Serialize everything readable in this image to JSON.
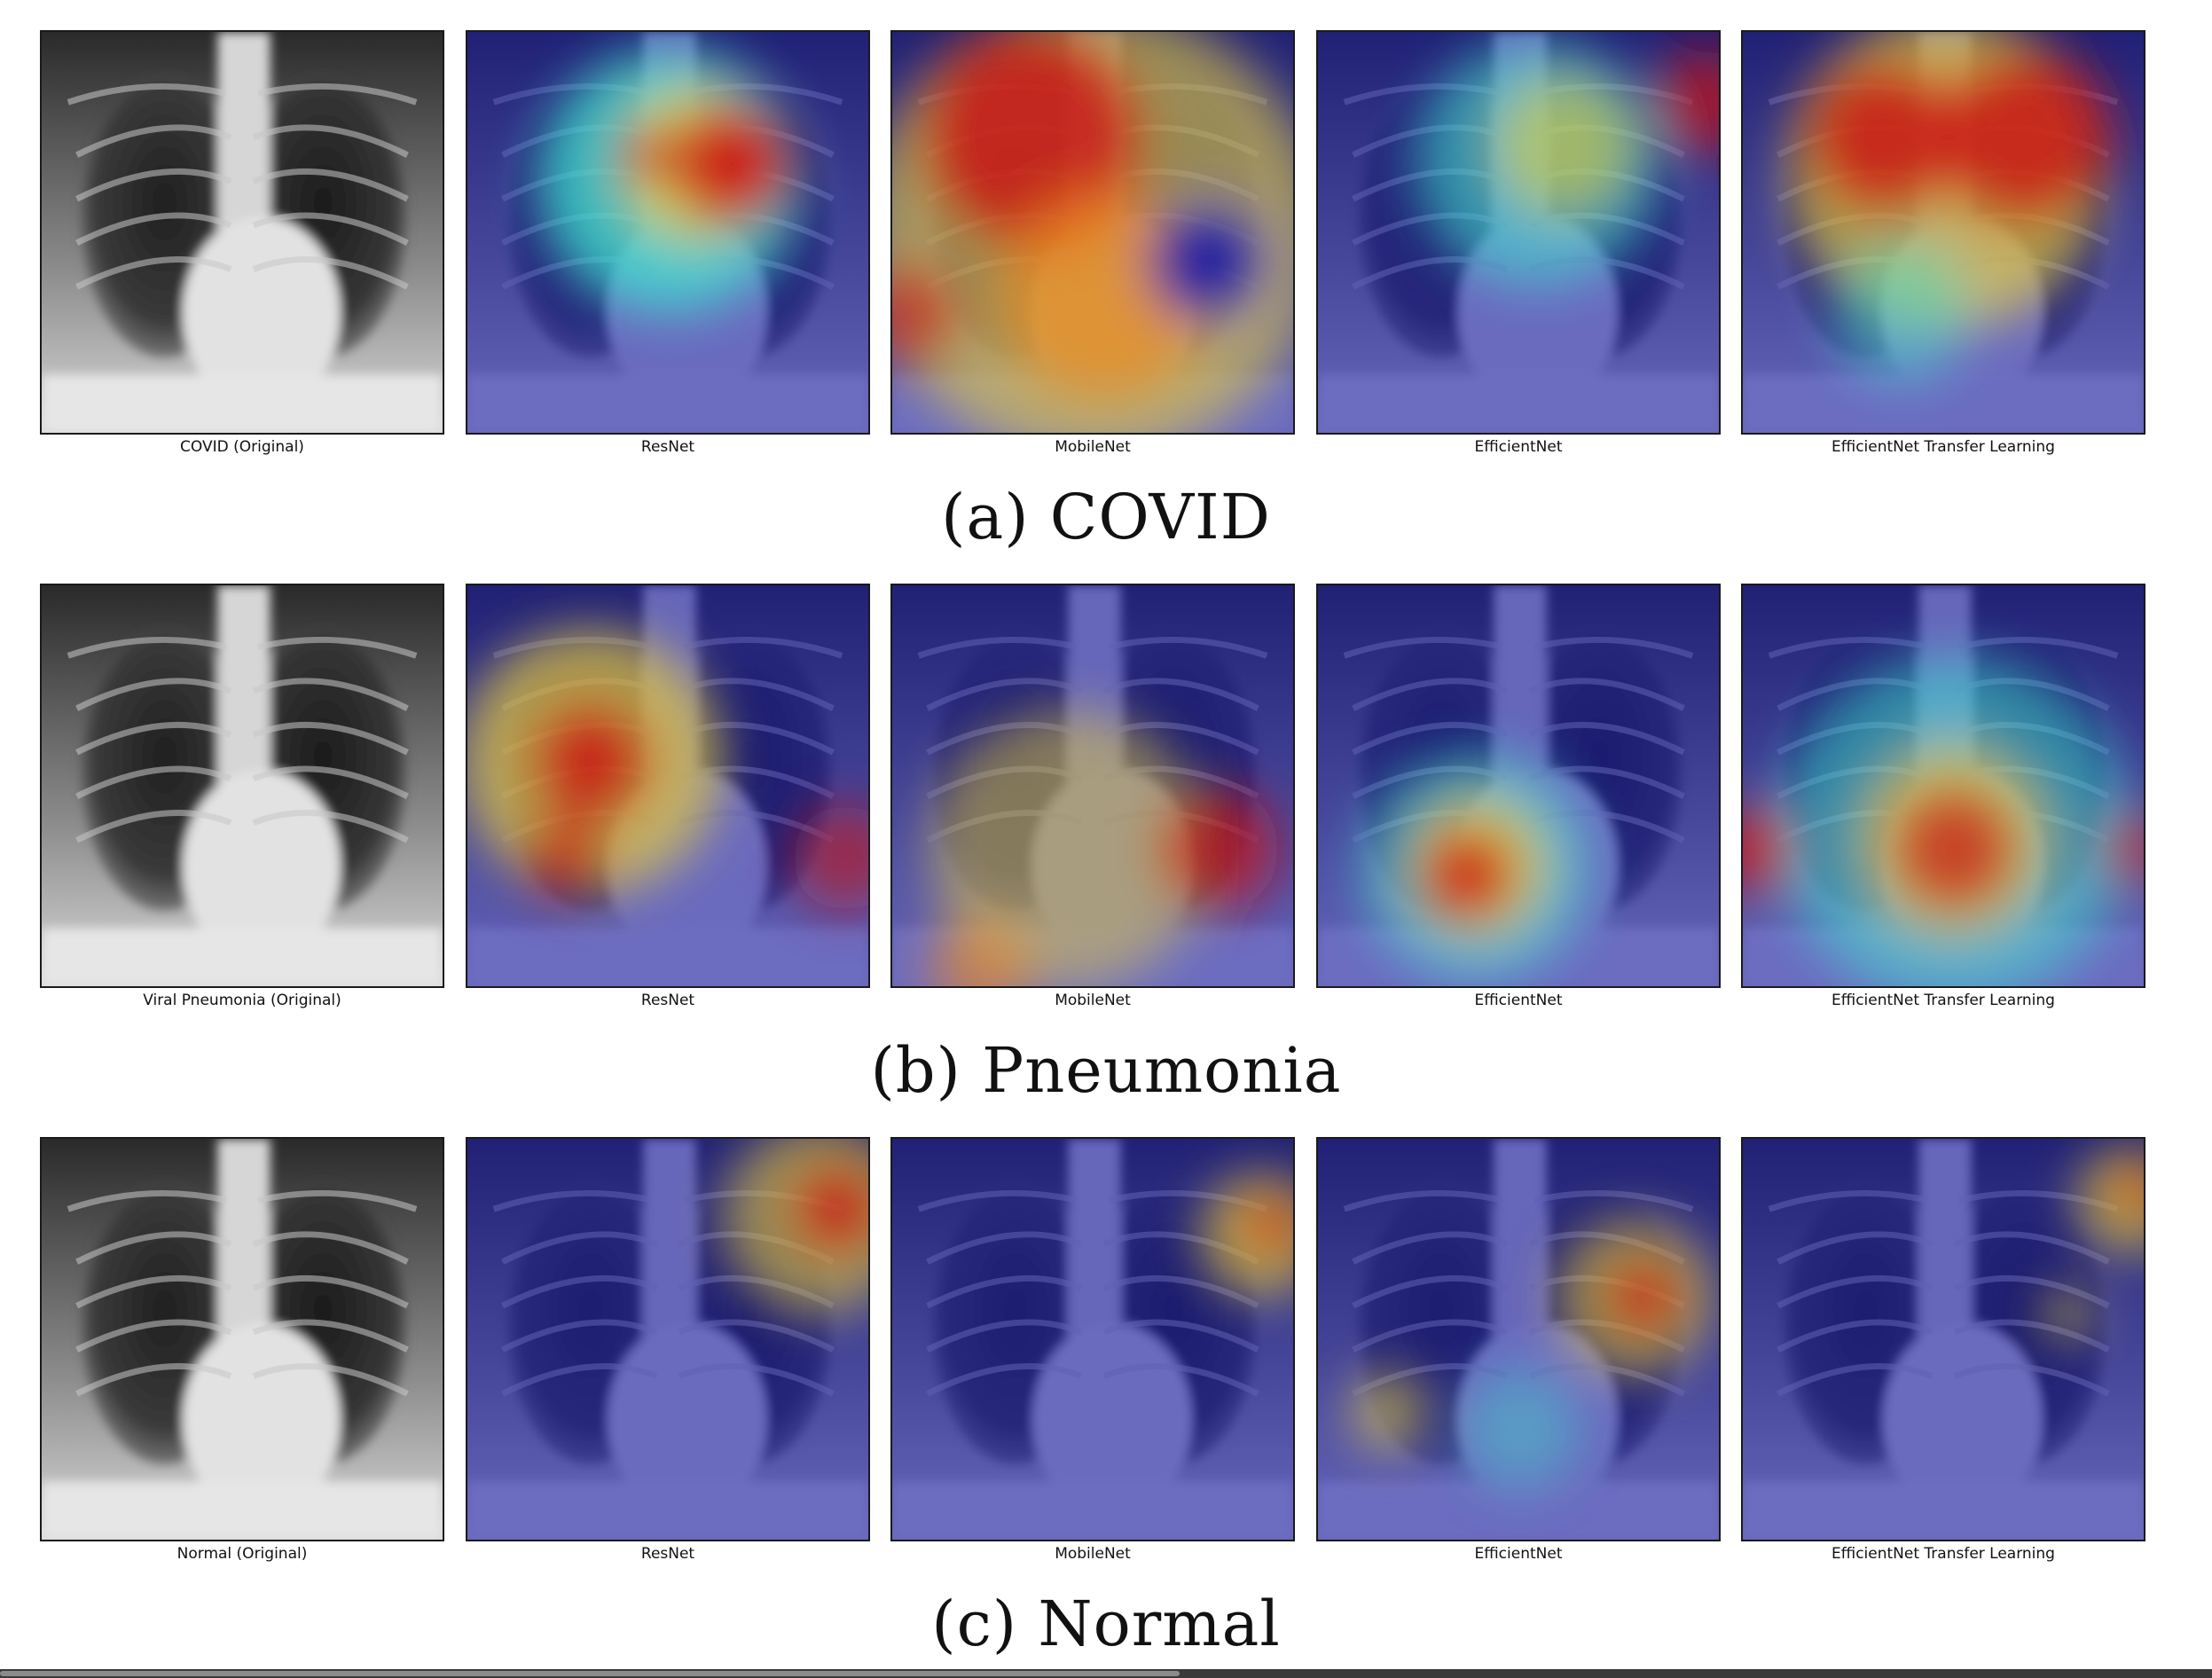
{
  "figure": {
    "panels": [
      {
        "id": "covid",
        "caption": "(a) COVID",
        "images": [
          {
            "label": "COVID (Original)",
            "kind": "original",
            "variant": "covid"
          },
          {
            "label": "ResNet",
            "kind": "heatmap",
            "variant": "covid"
          },
          {
            "label": "MobileNet",
            "kind": "heatmap",
            "variant": "covid"
          },
          {
            "label": "EfficientNet",
            "kind": "heatmap",
            "variant": "covid"
          },
          {
            "label": "EfficientNet Transfer Learning",
            "kind": "heatmap",
            "variant": "covid"
          }
        ]
      },
      {
        "id": "pneumonia",
        "caption": "(b) Pneumonia",
        "images": [
          {
            "label": "Viral Pneumonia (Original)",
            "kind": "original",
            "variant": "pneumonia"
          },
          {
            "label": "ResNet",
            "kind": "heatmap",
            "variant": "pneumonia"
          },
          {
            "label": "MobileNet",
            "kind": "heatmap",
            "variant": "pneumonia"
          },
          {
            "label": "EfficientNet",
            "kind": "heatmap",
            "variant": "pneumonia"
          },
          {
            "label": "EfficientNet Transfer Learning",
            "kind": "heatmap",
            "variant": "pneumonia"
          }
        ]
      },
      {
        "id": "normal",
        "caption": "(c) Normal",
        "images": [
          {
            "label": "Normal (Original)",
            "kind": "original",
            "variant": "normal"
          },
          {
            "label": "ResNet",
            "kind": "heatmap",
            "variant": "normal"
          },
          {
            "label": "MobileNet",
            "kind": "heatmap",
            "variant": "normal"
          },
          {
            "label": "EfficientNet",
            "kind": "heatmap",
            "variant": "normal"
          },
          {
            "label": "EfficientNet Transfer Learning",
            "kind": "heatmap",
            "variant": "normal"
          }
        ]
      }
    ]
  },
  "colors": {
    "heatmap_low": "#1a1aa8",
    "heatmap_mid": "#40e0d0",
    "heatmap_high": "#cc1010"
  }
}
